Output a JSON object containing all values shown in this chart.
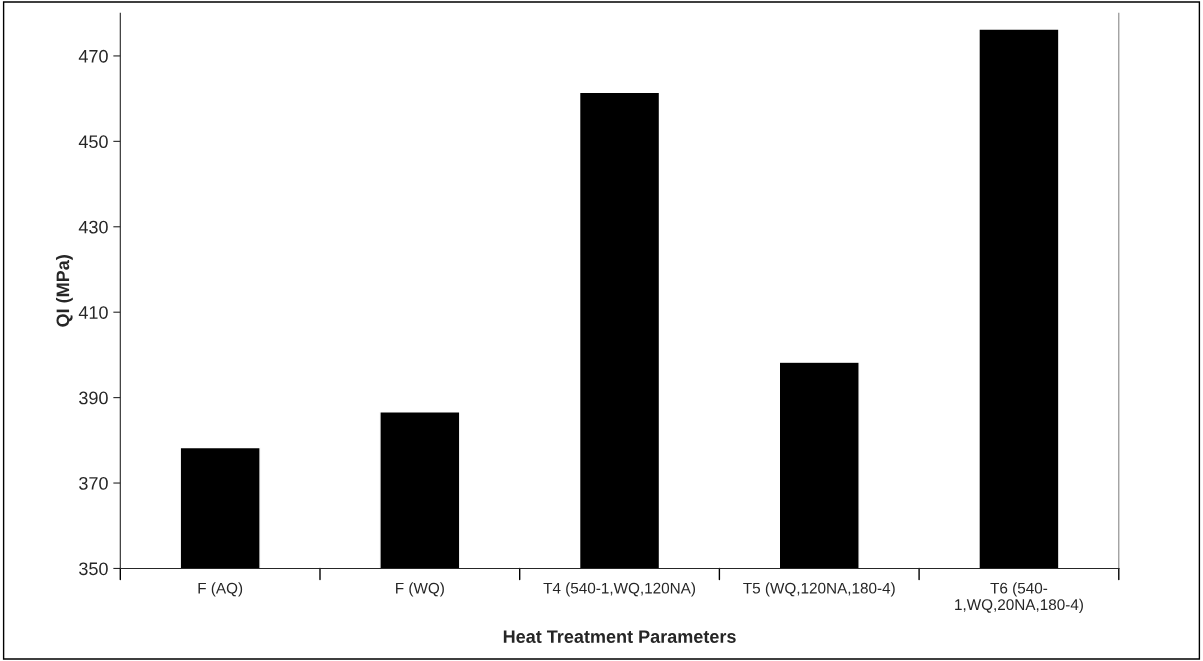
{
  "chart_data": {
    "type": "bar",
    "xlabel": "Heat Treatment Parameters",
    "ylabel": "QI (MPa)",
    "categories": [
      "F (AQ)",
      "F (WQ)",
      "T4 (540-1,WQ,120NA)",
      "T5 (WQ,120NA,180-4)",
      "T6 (540-\n1,WQ,20NA,180-4)"
    ],
    "values": [
      378.3,
      386.7,
      461.5,
      398.3,
      476.3
    ],
    "color": "#000000",
    "ylim": [
      350,
      480
    ],
    "yticks": [
      350,
      370,
      390,
      410,
      430,
      450,
      470
    ],
    "grid": false,
    "legend": false
  }
}
